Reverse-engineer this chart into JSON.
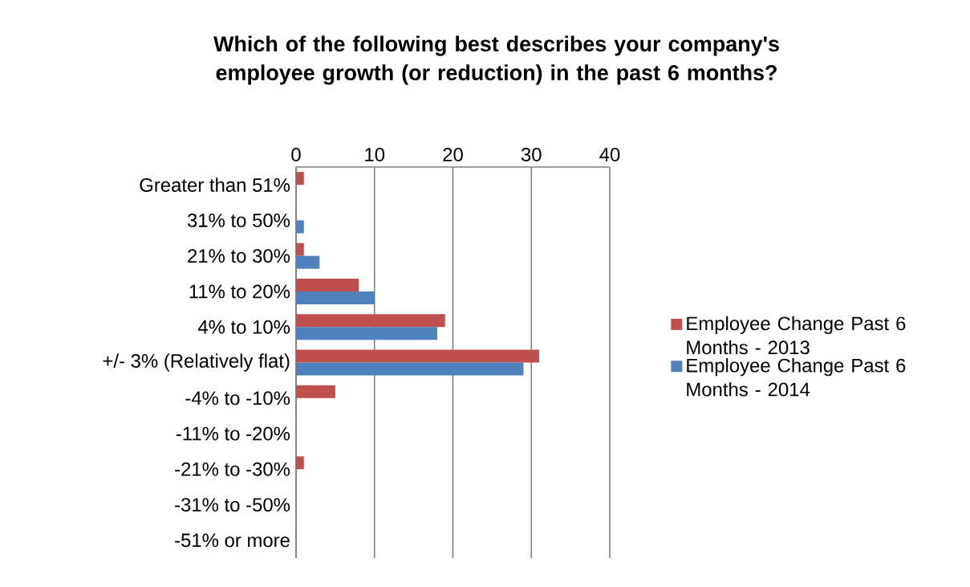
{
  "chart_data": {
    "type": "bar",
    "orientation": "horizontal",
    "title": "Which of the following best describes your company's employee growth (or reduction) in the past 6 months?",
    "categories": [
      "Greater than 51%",
      "31% to 50%",
      "21% to 30%",
      "11% to 20%",
      "4% to 10%",
      "+/- 3% (Relatively flat)",
      "-4% to -10%",
      "-11% to -20%",
      "-21% to -30%",
      "-31% to -50%",
      "-51% or more"
    ],
    "series": [
      {
        "name": "Employee Change Past 6 Months - 2013",
        "color": "#c0504d",
        "values": [
          1,
          null,
          1,
          8,
          19,
          31,
          5,
          null,
          1,
          null,
          null
        ]
      },
      {
        "name": "Employee Change Past 6 Months - 2014",
        "color": "#4f81bd",
        "values": [
          null,
          1,
          3,
          10,
          18,
          29,
          null,
          null,
          null,
          null,
          null
        ]
      }
    ],
    "xlim": [
      0,
      40
    ],
    "xticks": [
      0,
      10,
      20,
      30,
      40
    ],
    "grid": "x",
    "legend": "right"
  }
}
